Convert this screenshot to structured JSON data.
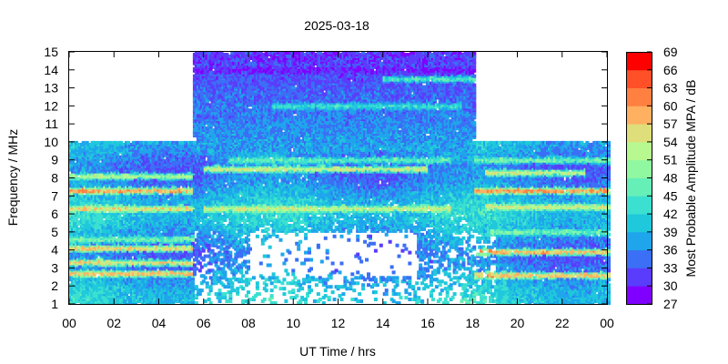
{
  "chart_data": {
    "type": "heatmap",
    "title": "2025-03-18",
    "xlabel": "UT Time / hrs",
    "ylabel": "Frequency / MHz",
    "xlim": [
      0,
      24
    ],
    "ylim": [
      1,
      15
    ],
    "x_ticks": [
      "00",
      "02",
      "04",
      "06",
      "08",
      "10",
      "12",
      "14",
      "16",
      "18",
      "20",
      "22",
      "00"
    ],
    "y_ticks": [
      "1",
      "2",
      "3",
      "4",
      "5",
      "6",
      "7",
      "8",
      "9",
      "10",
      "11",
      "12",
      "13",
      "14",
      "15"
    ],
    "colorbar": {
      "label": "Most Probable Amplitude MPA / dB",
      "min": 27,
      "max": 69,
      "ticks": [
        "27",
        "30",
        "33",
        "36",
        "39",
        "42",
        "45",
        "48",
        "51",
        "54",
        "57",
        "60",
        "63",
        "66",
        "69"
      ],
      "colors": [
        "#8000ff",
        "#5a3cfc",
        "#3b6ff5",
        "#1ea5eb",
        "#20c8dc",
        "#3ce0d0",
        "#66f0b8",
        "#90f8a0",
        "#b8f890",
        "#dede7a",
        "#ffb060",
        "#ff8040",
        "#ff5028",
        "#ff0000"
      ]
    },
    "coverage": [
      {
        "t_start": 0.0,
        "t_end": 5.5,
        "f_min": 1.0,
        "f_max": 10.0
      },
      {
        "t_start": 5.5,
        "t_end": 18.0,
        "f_min": 1.0,
        "f_max": 15.0
      },
      {
        "t_start": 18.0,
        "t_end": 24.0,
        "f_min": 1.0,
        "f_max": 10.0
      }
    ],
    "bands": [
      {
        "t_start": 0.0,
        "t_end": 5.5,
        "f": 2.7,
        "mpa": 62
      },
      {
        "t_start": 0.0,
        "t_end": 5.5,
        "f": 3.3,
        "mpa": 60
      },
      {
        "t_start": 0.0,
        "t_end": 5.5,
        "f": 4.1,
        "mpa": 61
      },
      {
        "t_start": 0.0,
        "t_end": 5.5,
        "f": 4.6,
        "mpa": 50
      },
      {
        "t_start": 0.0,
        "t_end": 5.5,
        "f": 6.3,
        "mpa": 59
      },
      {
        "t_start": 0.0,
        "t_end": 5.5,
        "f": 7.3,
        "mpa": 64
      },
      {
        "t_start": 0.0,
        "t_end": 5.5,
        "f": 8.1,
        "mpa": 55
      },
      {
        "t_start": 6.0,
        "t_end": 17.0,
        "f": 6.3,
        "mpa": 56
      },
      {
        "t_start": 6.0,
        "t_end": 16.0,
        "f": 8.5,
        "mpa": 58
      },
      {
        "t_start": 7.0,
        "t_end": 17.0,
        "f": 9.0,
        "mpa": 48
      },
      {
        "t_start": 9.0,
        "t_end": 17.5,
        "f": 12.0,
        "mpa": 45
      },
      {
        "t_start": 14.0,
        "t_end": 18.0,
        "f": 13.5,
        "mpa": 47
      },
      {
        "t_start": 5.5,
        "t_end": 18.0,
        "f": 14.0,
        "mpa": 29
      },
      {
        "t_start": 18.0,
        "t_end": 24.0,
        "f": 2.6,
        "mpa": 62
      },
      {
        "t_start": 18.0,
        "t_end": 24.0,
        "f": 3.9,
        "mpa": 63
      },
      {
        "t_start": 18.5,
        "t_end": 24.0,
        "f": 5.0,
        "mpa": 49
      },
      {
        "t_start": 18.5,
        "t_end": 24.0,
        "f": 6.4,
        "mpa": 57
      },
      {
        "t_start": 18.0,
        "t_end": 24.0,
        "f": 7.3,
        "mpa": 65
      },
      {
        "t_start": 18.5,
        "t_end": 23.0,
        "f": 8.3,
        "mpa": 58
      },
      {
        "t_start": 18.0,
        "t_end": 24.0,
        "f": 9.0,
        "mpa": 50
      }
    ]
  }
}
